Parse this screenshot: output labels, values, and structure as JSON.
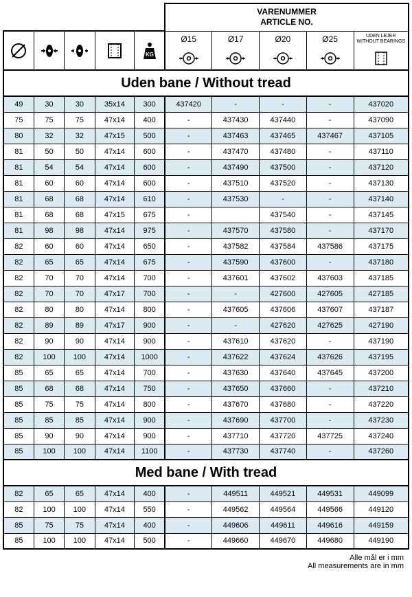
{
  "header": {
    "varenummer": "VARENUMMER",
    "article_no": "ARTICLE NO."
  },
  "col_headers": {
    "d15": "Ø15",
    "d17": "Ø17",
    "d20": "Ø20",
    "d25": "Ø25",
    "uden_lejer": "UDEN LEJER",
    "without_bearings": "WITHOUT BEARINGS"
  },
  "sections": {
    "without_tread": "Uden bane / Without tread",
    "with_tread": "Med bane / With tread"
  },
  "columns_widths": [
    40,
    40,
    40,
    52,
    40,
    62,
    62,
    62,
    62,
    72
  ],
  "rows_without": [
    [
      "49",
      "30",
      "30",
      "35x14",
      "300",
      "437420",
      "-",
      "-",
      "-",
      "437020"
    ],
    [
      "75",
      "75",
      "75",
      "47x14",
      "400",
      "-",
      "437430",
      "437440",
      "-",
      "437090"
    ],
    [
      "80",
      "32",
      "32",
      "47x15",
      "500",
      "-",
      "437463",
      "437465",
      "437467",
      "437105"
    ],
    [
      "81",
      "50",
      "50",
      "47x14",
      "600",
      "-",
      "437470",
      "437480",
      "-",
      "437110"
    ],
    [
      "81",
      "54",
      "54",
      "47x14",
      "600",
      "-",
      "437490",
      "437500",
      "-",
      "437120"
    ],
    [
      "81",
      "60",
      "60",
      "47x14",
      "600",
      "-",
      "437510",
      "437520",
      "-",
      "437130"
    ],
    [
      "81",
      "68",
      "68",
      "47x14",
      "610",
      "-",
      "437530",
      "-",
      "-",
      "437140"
    ],
    [
      "81",
      "68",
      "68",
      "47x15",
      "675",
      "-",
      "",
      "437540",
      "-",
      "437145"
    ],
    [
      "81",
      "98",
      "98",
      "47x14",
      "975",
      "-",
      "437570",
      "437580",
      "-",
      "437170"
    ],
    [
      "82",
      "60",
      "60",
      "47x14",
      "650",
      "-",
      "437582",
      "437584",
      "437586",
      "437175"
    ],
    [
      "82",
      "65",
      "65",
      "47x14",
      "675",
      "-",
      "437590",
      "437600",
      "-",
      "437180"
    ],
    [
      "82",
      "70",
      "70",
      "47x14",
      "700",
      "-",
      "437601",
      "437602",
      "437603",
      "437185"
    ],
    [
      "82",
      "70",
      "70",
      "47x17",
      "700",
      "-",
      "-",
      "427600",
      "427605",
      "427185"
    ],
    [
      "82",
      "80",
      "80",
      "47x14",
      "800",
      "-",
      "437605",
      "437606",
      "437607",
      "437187"
    ],
    [
      "82",
      "89",
      "89",
      "47x17",
      "900",
      "-",
      "-",
      "427620",
      "427625",
      "427190"
    ],
    [
      "82",
      "90",
      "90",
      "47x14",
      "900",
      "-",
      "437610",
      "437620",
      "-",
      "437190"
    ],
    [
      "82",
      "100",
      "100",
      "47x14",
      "1000",
      "-",
      "437622",
      "437624",
      "437626",
      "437195"
    ],
    [
      "85",
      "65",
      "65",
      "47x14",
      "700",
      "-",
      "437630",
      "437640",
      "437645",
      "437200"
    ],
    [
      "85",
      "68",
      "68",
      "47x14",
      "750",
      "-",
      "437650",
      "437660",
      "-",
      "437210"
    ],
    [
      "85",
      "75",
      "75",
      "47x14",
      "800",
      "-",
      "437670",
      "437680",
      "-",
      "437220"
    ],
    [
      "85",
      "85",
      "85",
      "47x14",
      "900",
      "-",
      "437690",
      "437700",
      "-",
      "437230"
    ],
    [
      "85",
      "90",
      "90",
      "47x14",
      "900",
      "-",
      "437710",
      "437720",
      "437725",
      "437240"
    ],
    [
      "85",
      "100",
      "100",
      "47x14",
      "1100",
      "-",
      "437730",
      "437740",
      "-",
      "437260"
    ]
  ],
  "rows_with": [
    [
      "82",
      "65",
      "65",
      "47x14",
      "400",
      "-",
      "449511",
      "449521",
      "449531",
      "449099"
    ],
    [
      "82",
      "100",
      "100",
      "47x14",
      "550",
      "-",
      "449562",
      "449564",
      "449566",
      "449120"
    ],
    [
      "85",
      "75",
      "75",
      "47x14",
      "400",
      "-",
      "449606",
      "449611",
      "449616",
      "449159"
    ],
    [
      "85",
      "100",
      "100",
      "47x14",
      "500",
      "-",
      "449660",
      "449670",
      "449680",
      "449190"
    ]
  ],
  "footer": {
    "line1": "Alle mål er i mm",
    "line2": "All measurements are in mm"
  },
  "colors": {
    "alt_row": "#dceaf4",
    "border": "#000000",
    "text": "#000000"
  }
}
